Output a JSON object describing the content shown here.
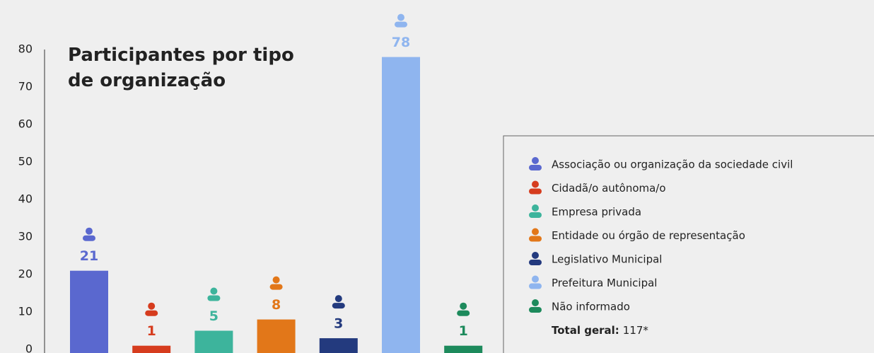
{
  "chart_data": {
    "type": "bar",
    "title": "Participantes por tipo de organização",
    "categories": [
      "Associação ou organização da sociedade civil",
      "Cidadã/o autônoma/o",
      "Empresa privada",
      "Entidade ou órgão de representação",
      "Legislativo Municipal",
      "Prefeitura Municipal",
      "Não informado"
    ],
    "values": [
      21,
      1,
      5,
      8,
      3,
      78,
      1
    ],
    "colors": [
      "#5a68cf",
      "#d63c1e",
      "#3db49c",
      "#e27719",
      "#233a7e",
      "#8fb5ef",
      "#1d8a5c"
    ],
    "ylim": [
      0,
      80
    ],
    "yticks": [
      0,
      10,
      20,
      30,
      40,
      50,
      60,
      70,
      80
    ],
    "total_label": "Total geral:",
    "total_text": "117*"
  }
}
